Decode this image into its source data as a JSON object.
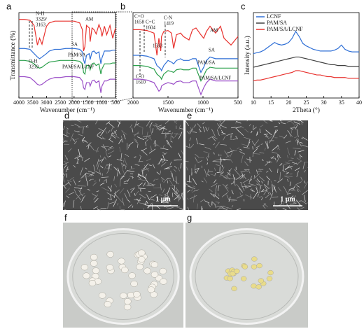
{
  "chart_data": [
    {
      "type": "line",
      "label": "a",
      "xlabel": "Wavenumber (cm⁻¹)",
      "ylabel": "Transmittance (%)",
      "xlim": [
        4000,
        500
      ],
      "xticks": [
        4000,
        3500,
        3000,
        2500,
        2000,
        1500,
        1000,
        500
      ],
      "ylim": [
        0,
        100
      ],
      "x": [
        4000,
        3800,
        3600,
        3450,
        3329,
        3250,
        3163,
        3000,
        2900,
        2700,
        2500,
        2300,
        2100,
        2000,
        1800,
        1700,
        1658,
        1610,
        1550,
        1450,
        1419,
        1350,
        1280,
        1200,
        1100,
        1030,
        990,
        900,
        820,
        700,
        600,
        500
      ],
      "series": [
        {
          "name": "AM",
          "color": "#e8322e",
          "values": [
            92,
            92,
            91,
            85,
            62,
            70,
            63,
            84,
            88,
            90,
            90,
            90,
            90,
            90,
            88,
            80,
            55,
            60,
            85,
            82,
            66,
            82,
            80,
            75,
            86,
            80,
            72,
            84,
            74,
            85,
            70,
            82
          ]
        },
        {
          "name": "SA",
          "color": "#2f6fd6",
          "values": [
            58,
            58,
            57,
            52,
            48,
            46,
            48,
            52,
            55,
            57,
            57,
            58,
            58,
            58,
            57,
            54,
            45,
            40,
            50,
            52,
            45,
            54,
            55,
            52,
            54,
            40,
            47,
            55,
            55,
            55,
            56,
            56
          ]
        },
        {
          "name": "PAM/SA",
          "color": "#2ca04c",
          "values": [
            44,
            44,
            43,
            40,
            36,
            35,
            36,
            40,
            42,
            43,
            44,
            44,
            44,
            44,
            43,
            40,
            30,
            28,
            38,
            38,
            33,
            40,
            41,
            38,
            40,
            28,
            34,
            40,
            40,
            40,
            41,
            41
          ]
        },
        {
          "name": "PAM/SA/LCNF",
          "color": "#9b4fc8",
          "values": [
            25,
            25,
            24,
            20,
            16,
            15,
            16,
            20,
            22,
            24,
            24,
            25,
            25,
            25,
            24,
            20,
            12,
            10,
            18,
            18,
            14,
            20,
            21,
            18,
            20,
            6,
            14,
            20,
            20,
            22,
            22,
            22
          ]
        }
      ],
      "annotations": [
        {
          "lines": [
            "N-H",
            "3329/",
            "3163"
          ]
        },
        {
          "lines": [
            "O-H",
            "3259"
          ]
        }
      ]
    },
    {
      "type": "line",
      "label": "b",
      "xlabel": "Wavenumber (cm⁻¹)",
      "xlim": [
        2000,
        500
      ],
      "xticks": [
        2000,
        1500,
        1000,
        500
      ],
      "ylim": [
        0,
        100
      ],
      "x": [
        2000,
        1900,
        1800,
        1700,
        1658,
        1630,
        1604,
        1593,
        1560,
        1500,
        1450,
        1419,
        1380,
        1320,
        1280,
        1200,
        1150,
        1100,
        1030,
        990,
        950,
        900,
        820,
        750,
        700,
        600,
        500
      ],
      "series": [
        {
          "name": "AM",
          "color": "#e8322e",
          "values": [
            80,
            80,
            79,
            76,
            50,
            70,
            55,
            72,
            78,
            79,
            76,
            58,
            74,
            76,
            72,
            68,
            80,
            82,
            74,
            70,
            78,
            84,
            76,
            84,
            70,
            62,
            72
          ]
        },
        {
          "name": "SA",
          "color": "#2f6fd6",
          "values": [
            50,
            50,
            49,
            46,
            38,
            36,
            34,
            32,
            38,
            44,
            42,
            40,
            44,
            46,
            44,
            44,
            46,
            46,
            30,
            36,
            44,
            48,
            46,
            46,
            46,
            46,
            46
          ]
        },
        {
          "name": "PAM/SA",
          "color": "#2ca04c",
          "values": [
            38,
            38,
            37,
            34,
            28,
            26,
            24,
            22,
            28,
            32,
            31,
            30,
            33,
            34,
            33,
            33,
            35,
            35,
            20,
            26,
            33,
            36,
            35,
            35,
            35,
            35,
            35
          ]
        },
        {
          "name": "PAM/SA/LCNF",
          "color": "#9b4fc8",
          "values": [
            22,
            22,
            21,
            18,
            12,
            8,
            10,
            14,
            16,
            18,
            17,
            16,
            19,
            20,
            18,
            18,
            20,
            20,
            4,
            12,
            18,
            22,
            20,
            20,
            20,
            20,
            20
          ]
        }
      ],
      "annotations": [
        {
          "lines": [
            "C=O",
            "1658"
          ]
        },
        {
          "lines": [
            "C=C",
            "1604"
          ]
        },
        {
          "lines": [
            "C-N",
            "1419"
          ]
        },
        {
          "lines": [
            "1593"
          ]
        },
        {
          "lines": [
            "C-O",
            "1610"
          ]
        }
      ]
    },
    {
      "type": "line",
      "label": "c",
      "xlabel": "2Theta (°)",
      "ylabel": "Intensity (a.u.)",
      "xlim": [
        10,
        40
      ],
      "xticks": [
        10,
        15,
        20,
        25,
        30,
        35,
        40
      ],
      "ylim": [
        0,
        100
      ],
      "legend": "upper left",
      "x": [
        10,
        11,
        12,
        13,
        14,
        15,
        16,
        17,
        18,
        19,
        20,
        21,
        22,
        23,
        24,
        25,
        26,
        27,
        28,
        29,
        30,
        31,
        32,
        33,
        34,
        35,
        36,
        37,
        38,
        39,
        40
      ],
      "series": [
        {
          "name": "LCNF",
          "color": "#2f6fd6",
          "values": [
            52,
            53,
            54,
            56,
            59,
            62,
            65,
            63,
            62,
            63,
            65,
            70,
            78,
            72,
            64,
            61,
            59,
            57,
            56,
            55,
            55,
            55,
            55,
            56,
            58,
            62,
            57,
            55,
            54,
            54,
            54
          ]
        },
        {
          "name": "PAM/SA",
          "color": "#404040",
          "values": [
            36,
            37,
            38,
            39,
            40,
            41,
            42,
            43,
            44,
            45,
            46,
            47,
            48,
            48,
            47,
            46,
            45,
            44,
            43,
            42,
            41,
            40,
            39,
            39,
            38,
            38,
            38,
            37,
            37,
            37,
            37
          ]
        },
        {
          "name": "PAM/SA/LCNF",
          "color": "#e8322e",
          "values": [
            20,
            21,
            21,
            22,
            23,
            24,
            25,
            26,
            27,
            28,
            29,
            30,
            32,
            32,
            31,
            30,
            29,
            28,
            27,
            27,
            26,
            25,
            25,
            24,
            24,
            24,
            24,
            23,
            23,
            23,
            23
          ]
        }
      ]
    }
  ],
  "images": [
    {
      "label": "d",
      "scale_bar": "1 μm",
      "kind": "sem"
    },
    {
      "label": "e",
      "scale_bar": "1 μm",
      "kind": "sem"
    },
    {
      "label": "f",
      "kind": "photo",
      "color": "#f4f1ea"
    },
    {
      "label": "g",
      "kind": "photo",
      "color": "#e9dc8a"
    }
  ]
}
